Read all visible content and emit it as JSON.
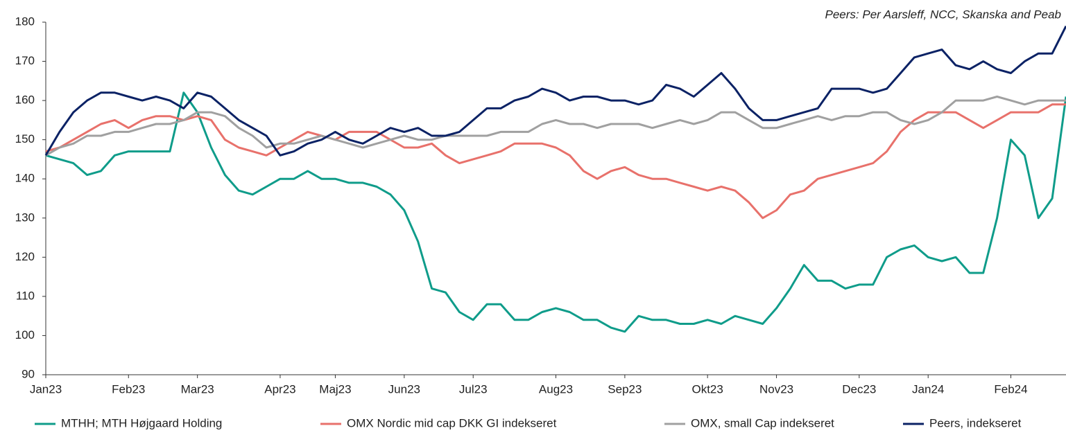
{
  "chart_data": {
    "type": "line",
    "annotation": "Peers: Per Aarsleff, NCC, Skanska and Peab",
    "categories": [
      "Jan23",
      null,
      null,
      null,
      null,
      null,
      "Feb23",
      null,
      null,
      null,
      null,
      "Mar23",
      null,
      null,
      null,
      null,
      null,
      "Apr23",
      null,
      null,
      null,
      "Maj23",
      null,
      null,
      null,
      null,
      "Jun23",
      null,
      null,
      null,
      null,
      "Jul23",
      null,
      null,
      null,
      null,
      null,
      "Aug23",
      null,
      null,
      null,
      null,
      "Sep23",
      null,
      null,
      null,
      null,
      null,
      "Okt23",
      null,
      null,
      null,
      null,
      "Nov23",
      null,
      null,
      null,
      null,
      null,
      "Dec23",
      null,
      null,
      null,
      null,
      "Jan24",
      null,
      null,
      null,
      null,
      null,
      "Feb24",
      null,
      null,
      null,
      null
    ],
    "series": [
      {
        "name": "MTHH; MTH Højgaard Holding",
        "color": "#0f9c8a",
        "values": [
          146,
          145,
          144,
          141,
          142,
          146,
          147,
          147,
          147,
          147,
          162,
          157,
          148,
          141,
          137,
          136,
          138,
          140,
          140,
          142,
          140,
          140,
          139,
          139,
          138,
          136,
          132,
          124,
          112,
          111,
          106,
          104,
          108,
          108,
          104,
          104,
          106,
          107,
          106,
          104,
          104,
          102,
          101,
          105,
          104,
          104,
          103,
          103,
          104,
          103,
          105,
          104,
          103,
          107,
          112,
          118,
          114,
          114,
          112,
          113,
          113,
          120,
          122,
          123,
          120,
          119,
          120,
          116,
          116,
          130,
          150,
          146,
          130,
          135,
          161
        ]
      },
      {
        "name": "OMX Nordic mid cap DKK GI indekseret",
        "color": "#e8716b",
        "values": [
          147,
          148,
          150,
          152,
          154,
          155,
          153,
          155,
          156,
          156,
          155,
          156,
          155,
          150,
          148,
          147,
          146,
          148,
          150,
          152,
          151,
          150,
          152,
          152,
          152,
          150,
          148,
          148,
          149,
          146,
          144,
          145,
          146,
          147,
          149,
          149,
          149,
          148,
          146,
          142,
          140,
          142,
          143,
          141,
          140,
          140,
          139,
          138,
          137,
          138,
          137,
          134,
          130,
          132,
          136,
          137,
          140,
          141,
          142,
          143,
          144,
          147,
          152,
          155,
          157,
          157,
          157,
          155,
          153,
          155,
          157,
          157,
          157,
          159,
          159
        ]
      },
      {
        "name": "OMX, small Cap indekseret",
        "color": "#a0a0a0",
        "values": [
          146,
          148,
          149,
          151,
          151,
          152,
          152,
          153,
          154,
          154,
          155,
          157,
          157,
          156,
          153,
          151,
          148,
          149,
          149,
          150,
          151,
          150,
          149,
          148,
          149,
          150,
          151,
          150,
          150,
          151,
          151,
          151,
          151,
          152,
          152,
          152,
          154,
          155,
          154,
          154,
          153,
          154,
          154,
          154,
          153,
          154,
          155,
          154,
          155,
          157,
          157,
          155,
          153,
          153,
          154,
          155,
          156,
          155,
          156,
          156,
          157,
          157,
          155,
          154,
          155,
          157,
          160,
          160,
          160,
          161,
          160,
          159,
          160,
          160,
          160
        ]
      },
      {
        "name": "Peers, indekseret",
        "color": "#0b2265",
        "values": [
          146,
          152,
          157,
          160,
          162,
          162,
          161,
          160,
          161,
          160,
          158,
          162,
          161,
          158,
          155,
          153,
          151,
          146,
          147,
          149,
          150,
          152,
          150,
          149,
          151,
          153,
          152,
          153,
          151,
          151,
          152,
          155,
          158,
          158,
          160,
          161,
          163,
          162,
          160,
          161,
          161,
          160,
          160,
          159,
          160,
          164,
          163,
          161,
          164,
          167,
          163,
          158,
          155,
          155,
          156,
          157,
          158,
          163,
          163,
          163,
          162,
          163,
          167,
          171,
          172,
          173,
          169,
          168,
          170,
          168,
          167,
          170,
          172,
          172,
          179
        ]
      }
    ],
    "ylim": [
      90,
      180
    ],
    "yticks": [
      90,
      100,
      110,
      120,
      130,
      140,
      150,
      160,
      170,
      180
    ]
  }
}
